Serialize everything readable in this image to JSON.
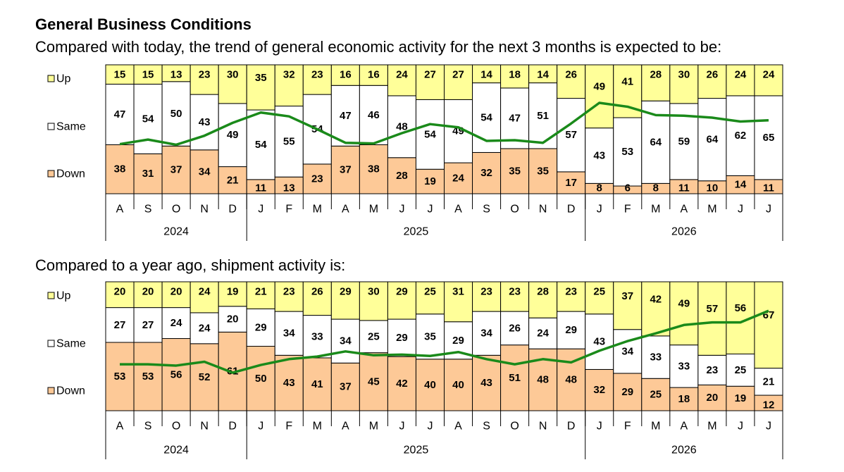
{
  "title": "General Business Conditions",
  "colors": {
    "up": "#ffff99",
    "same": "#ffffff",
    "down": "#fdc997",
    "line": "#1a8a1a",
    "border": "#000000"
  },
  "chart_data": [
    {
      "type": "bar",
      "stacked": true,
      "percent": true,
      "title": "Compared with today, the trend of general economic activity for the next 3 months is expected to be:",
      "categories": [
        "A",
        "S",
        "O",
        "N",
        "D",
        "J",
        "F",
        "M",
        "A",
        "M",
        "J",
        "J",
        "A",
        "S",
        "O",
        "N",
        "D",
        "J",
        "F",
        "M",
        "A",
        "M",
        "J",
        "J"
      ],
      "year_groups": [
        {
          "label": "2024",
          "count": 5
        },
        {
          "label": "2025",
          "count": 12
        },
        {
          "label": "2026",
          "count": 7
        }
      ],
      "series": [
        {
          "name": "Down",
          "values": [
            38,
            31,
            37,
            34,
            21,
            11,
            13,
            23,
            37,
            38,
            28,
            19,
            24,
            32,
            35,
            35,
            17,
            8,
            6,
            8,
            11,
            10,
            14,
            11
          ]
        },
        {
          "name": "Same",
          "values": [
            47,
            54,
            50,
            43,
            49,
            54,
            55,
            54,
            47,
            46,
            48,
            54,
            49,
            54,
            47,
            51,
            57,
            43,
            53,
            64,
            59,
            64,
            62,
            65
          ]
        },
        {
          "name": "Up",
          "values": [
            15,
            15,
            13,
            23,
            30,
            35,
            32,
            23,
            16,
            16,
            24,
            27,
            27,
            14,
            18,
            14,
            26,
            49,
            41,
            28,
            30,
            26,
            24,
            24
          ]
        }
      ],
      "line": {
        "values": [
          38.5,
          42,
          38,
          45,
          55,
          63,
          60,
          50,
          39.5,
          39,
          47,
          54,
          51.5,
          41,
          41.5,
          39.5,
          54.5,
          70.5,
          67.5,
          61,
          60.5,
          59,
          56,
          57
        ]
      },
      "ylim": [
        0,
        100
      ],
      "legend_position": "left"
    },
    {
      "type": "bar",
      "stacked": true,
      "percent": true,
      "title": "Compared to a year ago, shipment activity is:",
      "categories": [
        "A",
        "S",
        "O",
        "N",
        "D",
        "J",
        "F",
        "M",
        "A",
        "M",
        "J",
        "J",
        "A",
        "S",
        "O",
        "N",
        "D",
        "J",
        "F",
        "M",
        "A",
        "M",
        "J",
        "J"
      ],
      "year_groups": [
        {
          "label": "2024",
          "count": 5
        },
        {
          "label": "2025",
          "count": 12
        },
        {
          "label": "2026",
          "count": 7
        }
      ],
      "series": [
        {
          "name": "Down",
          "values": [
            53,
            53,
            56,
            52,
            61,
            50,
            43,
            41,
            37,
            45,
            42,
            40,
            40,
            43,
            51,
            48,
            48,
            32,
            29,
            25,
            18,
            20,
            19,
            12
          ]
        },
        {
          "name": "Same",
          "values": [
            27,
            27,
            24,
            24,
            20,
            29,
            34,
            33,
            34,
            25,
            29,
            35,
            29,
            34,
            26,
            24,
            29,
            43,
            34,
            33,
            33,
            23,
            25,
            21
          ]
        },
        {
          "name": "Up",
          "values": [
            20,
            20,
            20,
            24,
            19,
            21,
            23,
            26,
            29,
            30,
            29,
            25,
            31,
            23,
            23,
            28,
            23,
            25,
            37,
            42,
            49,
            57,
            56,
            67
          ]
        }
      ],
      "line": {
        "values": [
          36,
          36,
          35,
          38,
          29.5,
          35.5,
          40,
          42,
          46,
          43,
          43.5,
          42.5,
          45.5,
          40,
          36,
          40,
          37.5,
          46.5,
          54,
          60,
          66.5,
          68.5,
          68.5,
          77.5
        ]
      },
      "ylim": [
        0,
        100
      ],
      "legend_position": "left"
    }
  ]
}
